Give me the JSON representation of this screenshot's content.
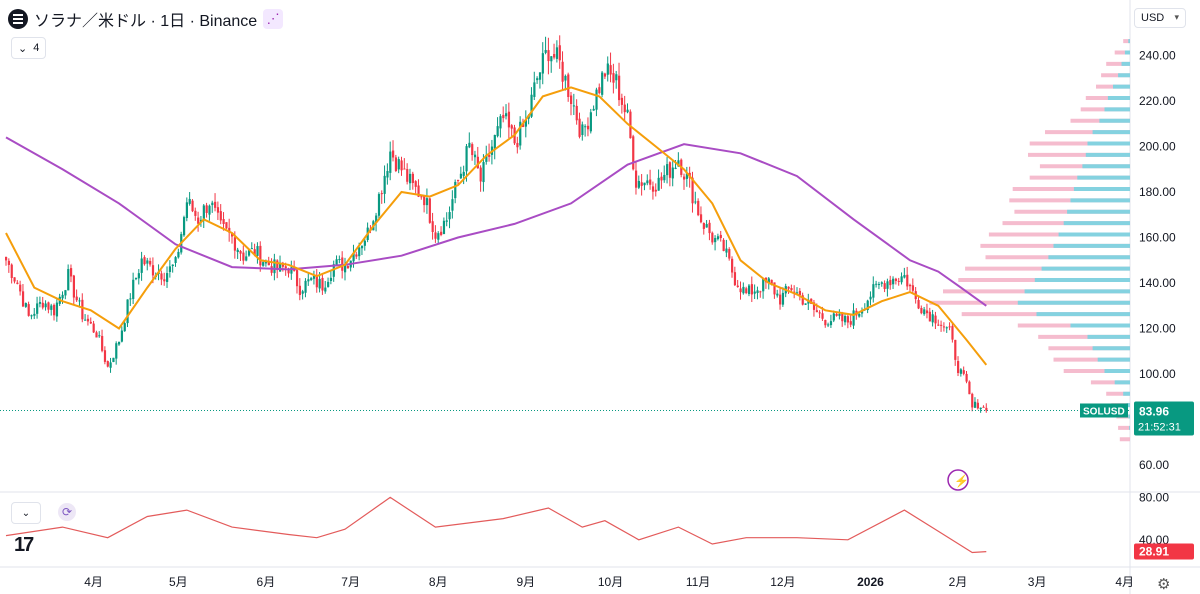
{
  "header": {
    "title": "ソラナ／米ドル · 1日 · Binance",
    "indicator_count": "4",
    "currency": "USD",
    "logo_icon": "solana-logo",
    "share_icon": "share-icon"
  },
  "price_tag": {
    "symbol": "SOLUSD",
    "price": "83.96",
    "countdown": "21:52:31",
    "color": "#089981"
  },
  "rsi_tag": {
    "value": "28.91",
    "color": "#f23645"
  },
  "colors": {
    "up": "#089981",
    "down": "#f23645",
    "sma_fast": "#f59e0b",
    "sma_slow": "#a94cc4",
    "rsi": "#e35b5b",
    "vp_up": "#7dd3e0",
    "vp_down": "#f4b5c9"
  },
  "chart_data": {
    "type": "candlestick",
    "title": "ソラナ／米ドル · 1日 · Binance",
    "x_tick_labels": [
      "4月",
      "5月",
      "6月",
      "7月",
      "8月",
      "9月",
      "10月",
      "11月",
      "12月",
      "2026",
      "2月",
      "3月",
      "4月"
    ],
    "x_tick_days": [
      31,
      61,
      92,
      122,
      153,
      184,
      214,
      245,
      275,
      306,
      337,
      365,
      396
    ],
    "y_axis": {
      "ticks": [
        60,
        80,
        100,
        120,
        140,
        160,
        180,
        200,
        220,
        240
      ],
      "ylim": [
        56,
        255
      ]
    },
    "keypoints": [
      {
        "day": 0,
        "price": 150
      },
      {
        "day": 4,
        "price": 140
      },
      {
        "day": 8,
        "price": 125
      },
      {
        "day": 13,
        "price": 132
      },
      {
        "day": 17,
        "price": 128
      },
      {
        "day": 22,
        "price": 143
      },
      {
        "day": 27,
        "price": 126
      },
      {
        "day": 32,
        "price": 118
      },
      {
        "day": 36,
        "price": 103
      },
      {
        "day": 40,
        "price": 115
      },
      {
        "day": 44,
        "price": 135
      },
      {
        "day": 48,
        "price": 150
      },
      {
        "day": 52,
        "price": 146
      },
      {
        "day": 56,
        "price": 144
      },
      {
        "day": 60,
        "price": 148
      },
      {
        "day": 64,
        "price": 176
      },
      {
        "day": 68,
        "price": 168
      },
      {
        "day": 72,
        "price": 176
      },
      {
        "day": 76,
        "price": 164
      },
      {
        "day": 80,
        "price": 160
      },
      {
        "day": 84,
        "price": 152
      },
      {
        "day": 88,
        "price": 154
      },
      {
        "day": 92,
        "price": 149
      },
      {
        "day": 96,
        "price": 146
      },
      {
        "day": 100,
        "price": 147
      },
      {
        "day": 104,
        "price": 138
      },
      {
        "day": 108,
        "price": 141
      },
      {
        "day": 112,
        "price": 139
      },
      {
        "day": 116,
        "price": 148
      },
      {
        "day": 120,
        "price": 148
      },
      {
        "day": 124,
        "price": 155
      },
      {
        "day": 128,
        "price": 162
      },
      {
        "day": 132,
        "price": 178
      },
      {
        "day": 136,
        "price": 198
      },
      {
        "day": 140,
        "price": 190
      },
      {
        "day": 144,
        "price": 182
      },
      {
        "day": 148,
        "price": 178
      },
      {
        "day": 152,
        "price": 162
      },
      {
        "day": 156,
        "price": 168
      },
      {
        "day": 160,
        "price": 185
      },
      {
        "day": 164,
        "price": 200
      },
      {
        "day": 168,
        "price": 185
      },
      {
        "day": 172,
        "price": 200
      },
      {
        "day": 176,
        "price": 212
      },
      {
        "day": 180,
        "price": 202
      },
      {
        "day": 184,
        "price": 210
      },
      {
        "day": 188,
        "price": 230
      },
      {
        "day": 192,
        "price": 243
      },
      {
        "day": 196,
        "price": 236
      },
      {
        "day": 200,
        "price": 222
      },
      {
        "day": 204,
        "price": 205
      },
      {
        "day": 208,
        "price": 220
      },
      {
        "day": 212,
        "price": 233
      },
      {
        "day": 216,
        "price": 228
      },
      {
        "day": 220,
        "price": 212
      },
      {
        "day": 223,
        "price": 185
      },
      {
        "day": 227,
        "price": 185
      },
      {
        "day": 231,
        "price": 184
      },
      {
        "day": 235,
        "price": 190
      },
      {
        "day": 238,
        "price": 195
      },
      {
        "day": 242,
        "price": 183
      },
      {
        "day": 246,
        "price": 168
      },
      {
        "day": 250,
        "price": 160
      },
      {
        "day": 254,
        "price": 155
      },
      {
        "day": 258,
        "price": 142
      },
      {
        "day": 262,
        "price": 135
      },
      {
        "day": 266,
        "price": 138
      },
      {
        "day": 270,
        "price": 140
      },
      {
        "day": 274,
        "price": 133
      },
      {
        "day": 278,
        "price": 138
      },
      {
        "day": 282,
        "price": 133
      },
      {
        "day": 286,
        "price": 128
      },
      {
        "day": 290,
        "price": 124
      },
      {
        "day": 294,
        "price": 124
      },
      {
        "day": 298,
        "price": 123
      },
      {
        "day": 302,
        "price": 128
      },
      {
        "day": 306,
        "price": 135
      },
      {
        "day": 310,
        "price": 140
      },
      {
        "day": 314,
        "price": 142
      },
      {
        "day": 318,
        "price": 143
      },
      {
        "day": 322,
        "price": 133
      },
      {
        "day": 326,
        "price": 127
      },
      {
        "day": 330,
        "price": 124
      },
      {
        "day": 334,
        "price": 118
      },
      {
        "day": 337,
        "price": 103
      },
      {
        "day": 340,
        "price": 95
      },
      {
        "day": 342,
        "price": 85
      },
      {
        "day": 344,
        "price": 87
      },
      {
        "day": 347,
        "price": 83.96
      }
    ],
    "sma_fast": {
      "period": 20,
      "points": [
        {
          "day": 0,
          "price": 162
        },
        {
          "day": 10,
          "price": 138
        },
        {
          "day": 20,
          "price": 132
        },
        {
          "day": 30,
          "price": 128
        },
        {
          "day": 40,
          "price": 120
        },
        {
          "day": 50,
          "price": 138
        },
        {
          "day": 60,
          "price": 155
        },
        {
          "day": 70,
          "price": 168
        },
        {
          "day": 80,
          "price": 162
        },
        {
          "day": 90,
          "price": 150
        },
        {
          "day": 100,
          "price": 148
        },
        {
          "day": 110,
          "price": 143
        },
        {
          "day": 120,
          "price": 148
        },
        {
          "day": 130,
          "price": 165
        },
        {
          "day": 140,
          "price": 180
        },
        {
          "day": 150,
          "price": 178
        },
        {
          "day": 160,
          "price": 183
        },
        {
          "day": 170,
          "price": 196
        },
        {
          "day": 180,
          "price": 205
        },
        {
          "day": 190,
          "price": 222
        },
        {
          "day": 200,
          "price": 226
        },
        {
          "day": 210,
          "price": 222
        },
        {
          "day": 220,
          "price": 210
        },
        {
          "day": 230,
          "price": 200
        },
        {
          "day": 240,
          "price": 190
        },
        {
          "day": 250,
          "price": 175
        },
        {
          "day": 260,
          "price": 150
        },
        {
          "day": 270,
          "price": 140
        },
        {
          "day": 280,
          "price": 135
        },
        {
          "day": 290,
          "price": 128
        },
        {
          "day": 300,
          "price": 126
        },
        {
          "day": 310,
          "price": 132
        },
        {
          "day": 320,
          "price": 136
        },
        {
          "day": 330,
          "price": 130
        },
        {
          "day": 340,
          "price": 115
        },
        {
          "day": 347,
          "price": 104
        }
      ]
    },
    "sma_slow": {
      "period": 100,
      "points": [
        {
          "day": 0,
          "price": 204
        },
        {
          "day": 20,
          "price": 190
        },
        {
          "day": 40,
          "price": 175
        },
        {
          "day": 60,
          "price": 157
        },
        {
          "day": 80,
          "price": 147
        },
        {
          "day": 100,
          "price": 146
        },
        {
          "day": 120,
          "price": 148
        },
        {
          "day": 140,
          "price": 152
        },
        {
          "day": 160,
          "price": 160
        },
        {
          "day": 180,
          "price": 166
        },
        {
          "day": 200,
          "price": 175
        },
        {
          "day": 220,
          "price": 192
        },
        {
          "day": 240,
          "price": 201
        },
        {
          "day": 260,
          "price": 197
        },
        {
          "day": 280,
          "price": 187
        },
        {
          "day": 300,
          "price": 168
        },
        {
          "day": 320,
          "price": 150
        },
        {
          "day": 330,
          "price": 145
        },
        {
          "day": 338,
          "price": 138
        },
        {
          "day": 347,
          "price": 130
        }
      ]
    },
    "rsi": {
      "period": 14,
      "ticks": [
        40,
        80
      ],
      "ylim": [
        20,
        90
      ],
      "points": [
        {
          "day": 0,
          "price": 44
        },
        {
          "day": 20,
          "price": 52
        },
        {
          "day": 36,
          "price": 42
        },
        {
          "day": 50,
          "price": 62
        },
        {
          "day": 64,
          "price": 68
        },
        {
          "day": 80,
          "price": 52
        },
        {
          "day": 100,
          "price": 45
        },
        {
          "day": 110,
          "price": 42
        },
        {
          "day": 120,
          "price": 50
        },
        {
          "day": 136,
          "price": 80
        },
        {
          "day": 152,
          "price": 52
        },
        {
          "day": 176,
          "price": 60
        },
        {
          "day": 192,
          "price": 70
        },
        {
          "day": 204,
          "price": 52
        },
        {
          "day": 212,
          "price": 58
        },
        {
          "day": 224,
          "price": 40
        },
        {
          "day": 238,
          "price": 52
        },
        {
          "day": 250,
          "price": 36
        },
        {
          "day": 262,
          "price": 42
        },
        {
          "day": 280,
          "price": 42
        },
        {
          "day": 298,
          "price": 40
        },
        {
          "day": 318,
          "price": 68
        },
        {
          "day": 330,
          "price": 48
        },
        {
          "day": 342,
          "price": 28
        },
        {
          "day": 347,
          "price": 28.91
        }
      ]
    },
    "volume_profile": {
      "bins": [
        {
          "price": 245,
          "up": 2,
          "down": 8
        },
        {
          "price": 240,
          "up": 6,
          "down": 18
        },
        {
          "price": 235,
          "up": 10,
          "down": 28
        },
        {
          "price": 230,
          "up": 14,
          "down": 34
        },
        {
          "price": 225,
          "up": 20,
          "down": 40
        },
        {
          "price": 220,
          "up": 26,
          "down": 52
        },
        {
          "price": 215,
          "up": 30,
          "down": 58
        },
        {
          "price": 210,
          "up": 36,
          "down": 70
        },
        {
          "price": 205,
          "up": 44,
          "down": 100
        },
        {
          "price": 200,
          "up": 50,
          "down": 118
        },
        {
          "price": 195,
          "up": 52,
          "down": 120
        },
        {
          "price": 190,
          "up": 56,
          "down": 106
        },
        {
          "price": 185,
          "up": 62,
          "down": 118
        },
        {
          "price": 180,
          "up": 66,
          "down": 138
        },
        {
          "price": 175,
          "up": 70,
          "down": 142
        },
        {
          "price": 170,
          "up": 74,
          "down": 136
        },
        {
          "price": 165,
          "up": 78,
          "down": 150
        },
        {
          "price": 160,
          "up": 84,
          "down": 166
        },
        {
          "price": 155,
          "up": 90,
          "down": 176
        },
        {
          "price": 150,
          "up": 96,
          "down": 170
        },
        {
          "price": 145,
          "up": 104,
          "down": 194
        },
        {
          "price": 140,
          "up": 112,
          "down": 202
        },
        {
          "price": 135,
          "up": 124,
          "down": 220
        },
        {
          "price": 130,
          "up": 132,
          "down": 236
        },
        {
          "price": 125,
          "up": 110,
          "down": 198
        },
        {
          "price": 120,
          "up": 70,
          "down": 132
        },
        {
          "price": 115,
          "up": 50,
          "down": 108
        },
        {
          "price": 110,
          "up": 44,
          "down": 96
        },
        {
          "price": 105,
          "up": 38,
          "down": 90
        },
        {
          "price": 100,
          "up": 30,
          "down": 78
        },
        {
          "price": 95,
          "up": 18,
          "down": 46
        },
        {
          "price": 90,
          "up": 8,
          "down": 28
        },
        {
          "price": 85,
          "up": 4,
          "down": 22
        },
        {
          "price": 80,
          "up": 2,
          "down": 16
        },
        {
          "price": 75,
          "up": 1,
          "down": 14
        },
        {
          "price": 70,
          "up": 0,
          "down": 12
        }
      ]
    }
  }
}
